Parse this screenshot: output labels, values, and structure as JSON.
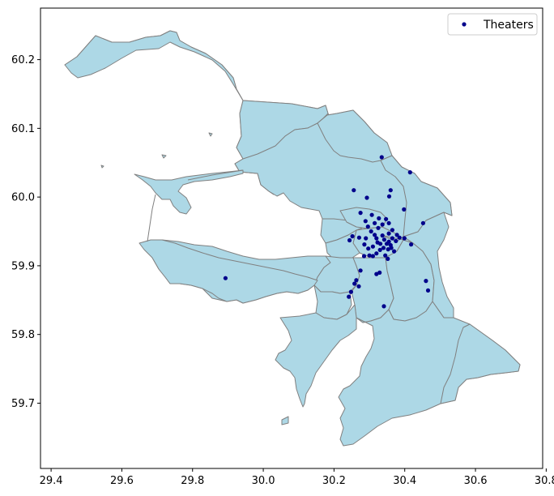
{
  "chart_data": {
    "type": "scatter",
    "basemap": "districts",
    "x_ticks": [
      "29.4",
      "29.6",
      "29.8",
      "30.0",
      "30.2",
      "30.4",
      "30.6",
      "30.8"
    ],
    "y_ticks": [
      "59.7",
      "59.8",
      "59.9",
      "60.0",
      "60.1",
      "60.2"
    ],
    "xlim": [
      29.37,
      30.79
    ],
    "ylim": [
      59.605,
      60.275
    ],
    "grid": false,
    "legend_position": "top-right",
    "series": [
      {
        "name": "Theaters",
        "color": "#00008b",
        "points": [
          [
            30.335,
            60.058
          ],
          [
            30.415,
            60.036
          ],
          [
            30.256,
            60.01
          ],
          [
            30.36,
            60.01
          ],
          [
            30.356,
            60.001
          ],
          [
            30.293,
            59.999
          ],
          [
            30.398,
            59.982
          ],
          [
            30.275,
            59.977
          ],
          [
            30.307,
            59.974
          ],
          [
            30.327,
            59.969
          ],
          [
            30.347,
            59.968
          ],
          [
            30.452,
            59.962
          ],
          [
            30.289,
            59.965
          ],
          [
            30.315,
            59.962
          ],
          [
            30.337,
            59.96
          ],
          [
            30.355,
            59.962
          ],
          [
            30.296,
            59.957
          ],
          [
            30.325,
            59.955
          ],
          [
            30.365,
            59.952
          ],
          [
            30.305,
            59.95
          ],
          [
            30.315,
            59.945
          ],
          [
            30.337,
            59.944
          ],
          [
            30.355,
            59.947
          ],
          [
            30.378,
            59.945
          ],
          [
            30.385,
            59.941
          ],
          [
            30.399,
            59.94
          ],
          [
            30.252,
            59.943
          ],
          [
            30.271,
            59.941
          ],
          [
            30.29,
            59.94
          ],
          [
            30.244,
            59.937
          ],
          [
            30.32,
            59.94
          ],
          [
            30.342,
            59.938
          ],
          [
            30.365,
            59.94
          ],
          [
            30.355,
            59.935
          ],
          [
            30.375,
            59.936
          ],
          [
            30.323,
            59.934
          ],
          [
            30.331,
            59.932
          ],
          [
            30.349,
            59.932
          ],
          [
            30.36,
            59.93
          ],
          [
            30.418,
            59.931
          ],
          [
            30.286,
            59.931
          ],
          [
            30.297,
            59.925
          ],
          [
            30.31,
            59.928
          ],
          [
            30.34,
            59.926
          ],
          [
            30.353,
            59.924
          ],
          [
            30.362,
            59.926
          ],
          [
            30.37,
            59.921
          ],
          [
            30.33,
            59.923
          ],
          [
            30.32,
            59.918
          ],
          [
            30.3,
            59.915
          ],
          [
            30.285,
            59.914
          ],
          [
            30.31,
            59.914
          ],
          [
            30.345,
            59.915
          ],
          [
            30.352,
            59.91
          ],
          [
            30.275,
            59.893
          ],
          [
            30.32,
            59.888
          ],
          [
            30.329,
            59.89
          ],
          [
            30.258,
            59.874
          ],
          [
            30.27,
            59.87
          ],
          [
            30.263,
            59.879
          ],
          [
            30.46,
            59.878
          ],
          [
            30.466,
            59.864
          ],
          [
            30.248,
            59.862
          ],
          [
            30.242,
            59.855
          ],
          [
            30.341,
            59.841
          ],
          [
            29.893,
            59.882
          ]
        ]
      }
    ]
  }
}
